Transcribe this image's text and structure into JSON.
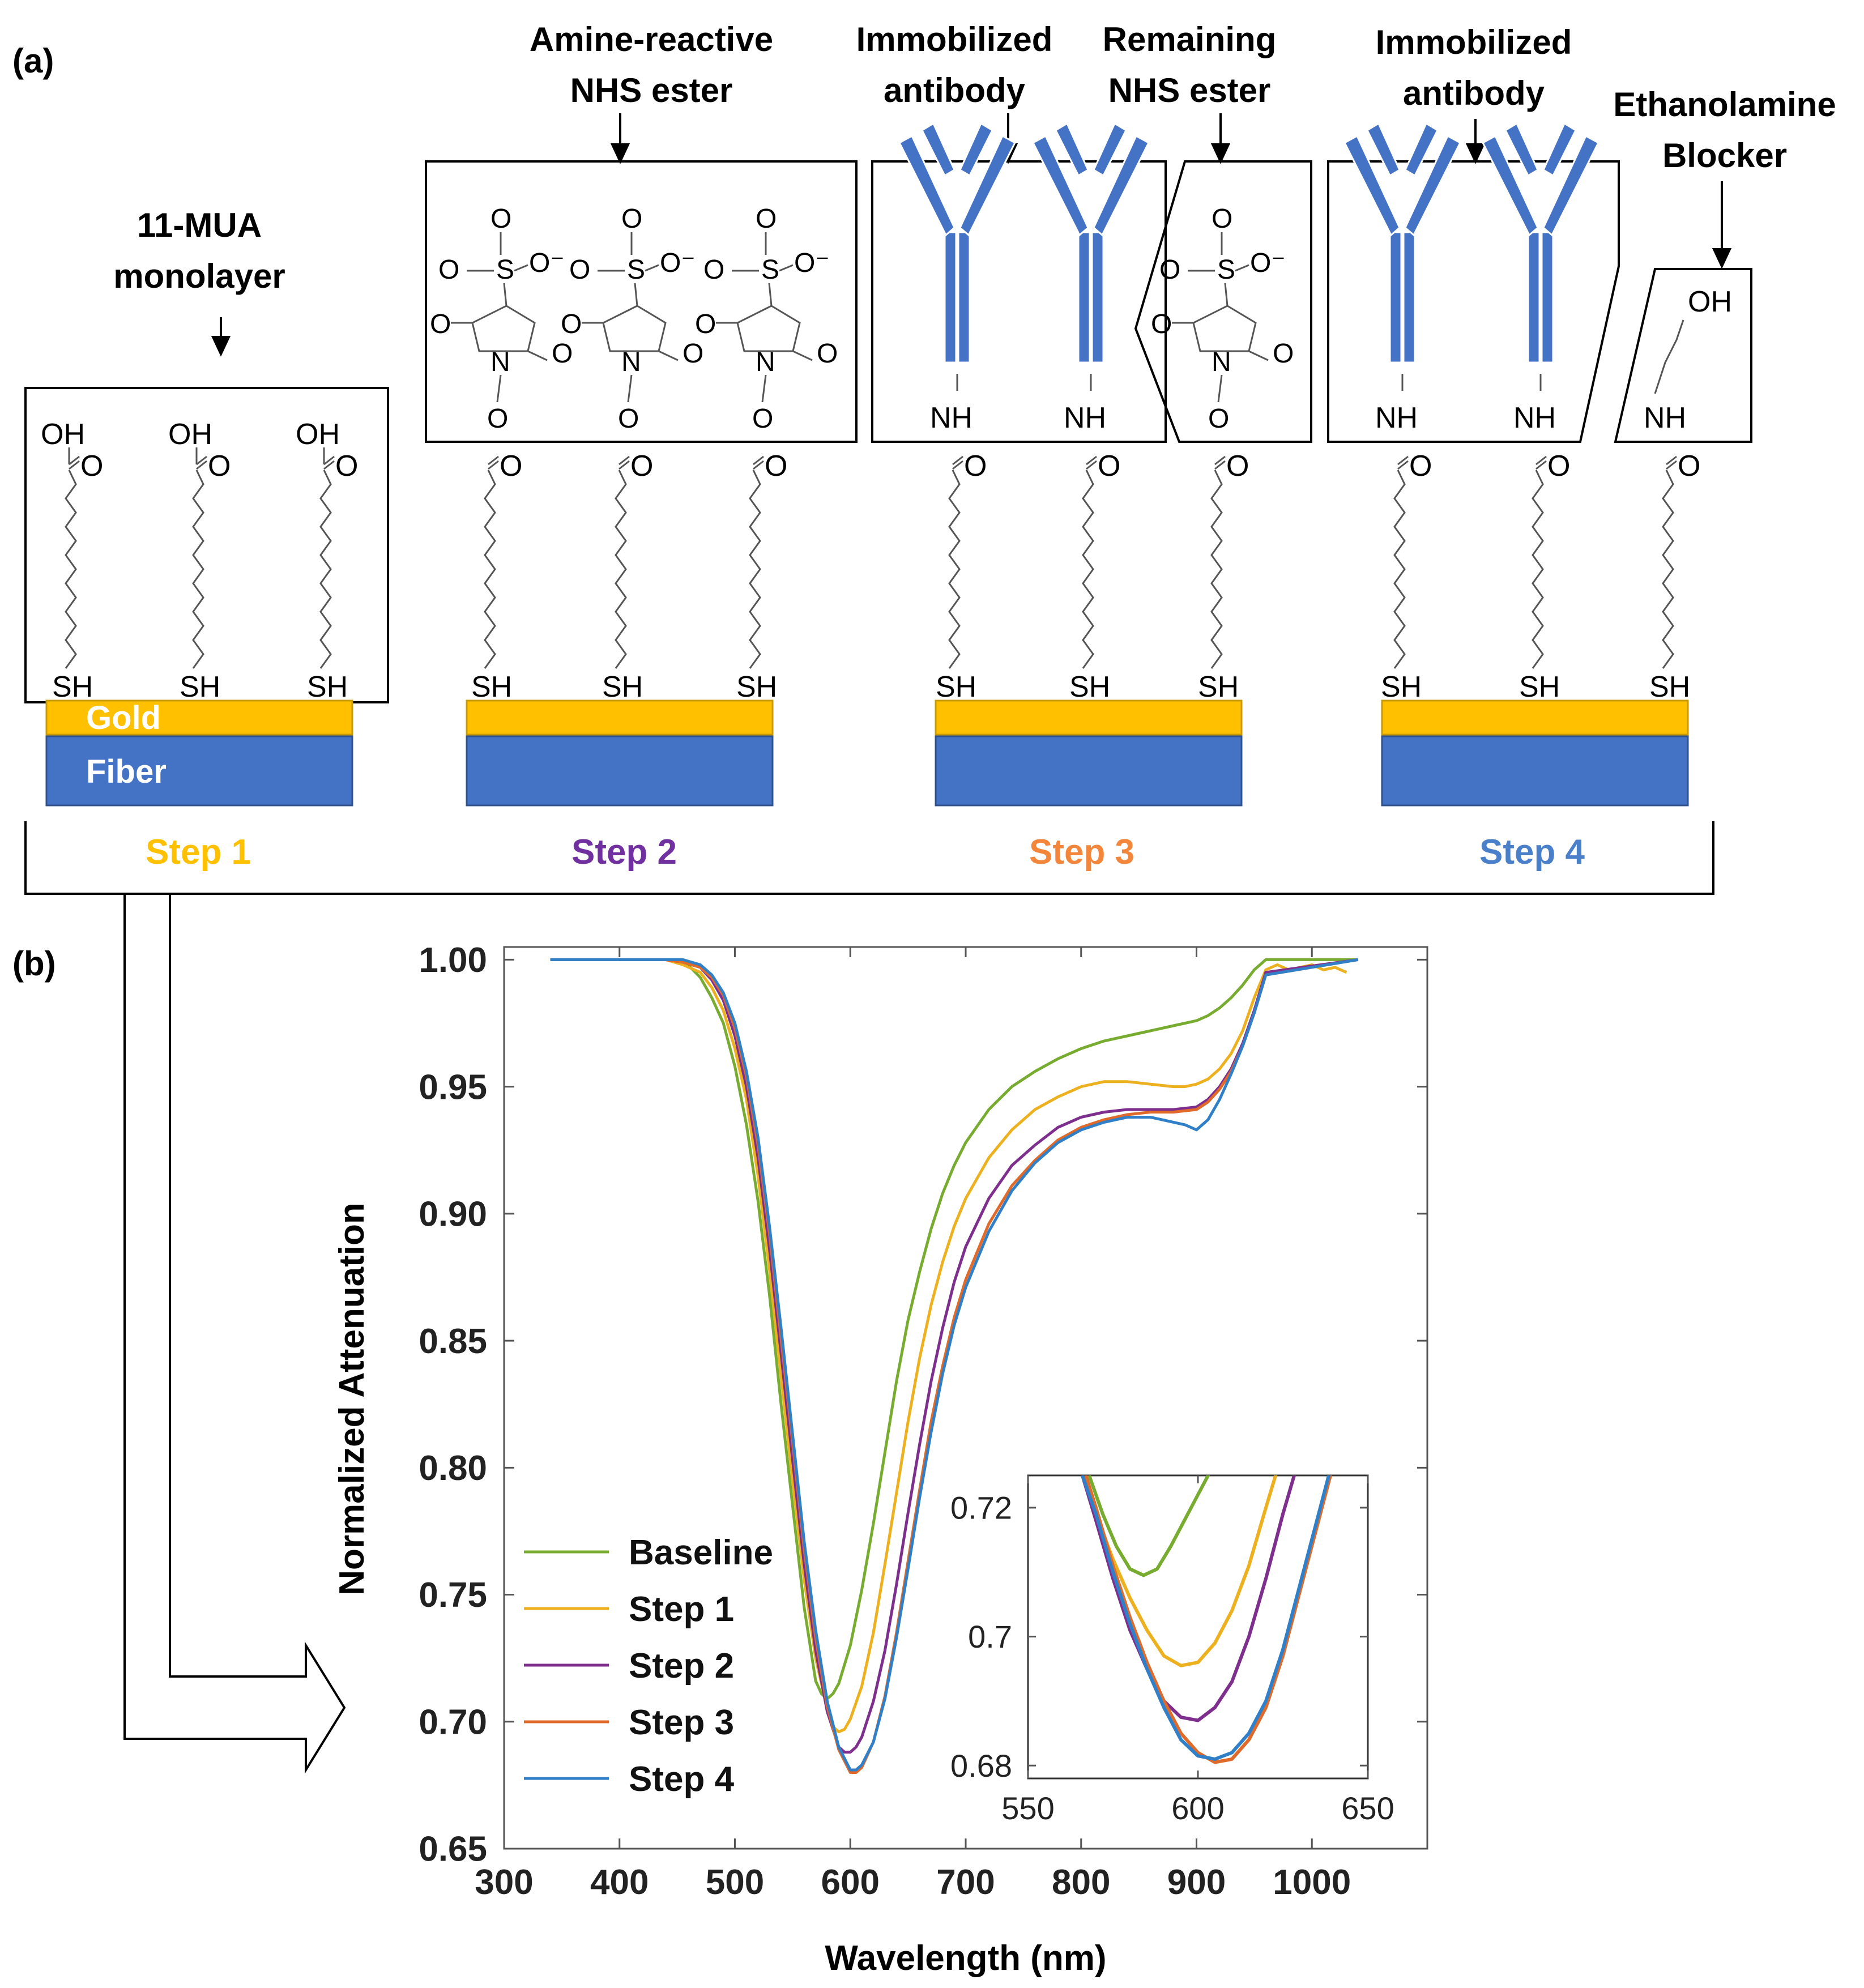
{
  "panels": {
    "a": "(a)",
    "b": "(b)"
  },
  "labels": {
    "mua": [
      "11-MUA",
      "monolayer"
    ],
    "nhs": [
      "Amine-reactive",
      "NHS ester"
    ],
    "immob1": [
      "Immobilized",
      "antibody"
    ],
    "remaining": [
      "Remaining",
      "NHS ester"
    ],
    "immob2": [
      "Immobilized",
      "antibody"
    ],
    "ethanolamine": [
      "Ethanolamine",
      "Blocker"
    ]
  },
  "substrate": {
    "gold": "Gold",
    "fiber": "Fiber"
  },
  "steps": [
    "Step 1",
    "Step 2",
    "Step 3",
    "Step 4"
  ],
  "chem": {
    "oh": "OH",
    "o": "O",
    "sh": "SH",
    "nh": "NH",
    "n": "N",
    "s": "S",
    "o_minus": "O⁻"
  },
  "colors": {
    "gold": "#FFC000",
    "fiber": "#4472C4",
    "antibody": "#4472C4",
    "step1": "#FFC000",
    "step2": "#7030A0",
    "step3": "#F4863B",
    "step4": "#4A7FC9",
    "baseline_line": "#77AC30",
    "step1_line": "#EDB120",
    "step2_line": "#7E2F8E",
    "step3_line": "#E06A2A",
    "step4_line": "#2F80C8"
  },
  "chart_data": [
    {
      "type": "line",
      "title": "",
      "xlabel": "Wavelength (nm)",
      "ylabel": "Normalized Attenuation",
      "xlim": [
        300,
        1100
      ],
      "ylim": [
        0.65,
        1.005
      ],
      "xticks": [
        300,
        400,
        500,
        600,
        700,
        800,
        900,
        1000
      ],
      "yticks": [
        0.65,
        0.7,
        0.75,
        0.8,
        0.85,
        0.9,
        0.95,
        1.0
      ],
      "ytick_labels": [
        "0.65",
        "0.70",
        "0.75",
        "0.80",
        "0.85",
        "0.90",
        "0.95",
        "1.00"
      ],
      "legend_position": "bottom-left",
      "series": [
        {
          "name": "Baseline",
          "color": "#77AC30",
          "x": [
            340,
            440,
            455,
            470,
            480,
            490,
            500,
            510,
            520,
            530,
            540,
            550,
            560,
            570,
            575,
            580,
            585,
            590,
            600,
            610,
            620,
            630,
            640,
            650,
            660,
            670,
            680,
            690,
            700,
            720,
            740,
            760,
            780,
            800,
            820,
            840,
            860,
            880,
            900,
            910,
            920,
            930,
            940,
            950,
            960,
            1040
          ],
          "y": [
            1.0,
            1.0,
            1.0,
            0.993,
            0.985,
            0.975,
            0.958,
            0.935,
            0.905,
            0.868,
            0.825,
            0.785,
            0.745,
            0.716,
            0.711,
            0.709,
            0.711,
            0.715,
            0.73,
            0.752,
            0.778,
            0.806,
            0.834,
            0.858,
            0.877,
            0.894,
            0.908,
            0.919,
            0.928,
            0.941,
            0.95,
            0.956,
            0.961,
            0.965,
            0.968,
            0.97,
            0.972,
            0.974,
            0.976,
            0.978,
            0.981,
            0.985,
            0.99,
            0.996,
            1.0,
            1.0
          ]
        },
        {
          "name": "Step 1",
          "color": "#EDB120",
          "x": [
            340,
            440,
            455,
            470,
            480,
            490,
            500,
            510,
            520,
            530,
            540,
            550,
            560,
            570,
            580,
            585,
            590,
            595,
            600,
            610,
            620,
            630,
            640,
            650,
            660,
            670,
            680,
            690,
            700,
            720,
            740,
            760,
            780,
            800,
            820,
            840,
            860,
            880,
            890,
            900,
            910,
            920,
            930,
            940,
            950,
            960,
            970,
            980,
            1000,
            1010,
            1020,
            1030
          ],
          "y": [
            1.0,
            1.0,
            0.998,
            0.995,
            0.989,
            0.98,
            0.965,
            0.945,
            0.915,
            0.878,
            0.836,
            0.795,
            0.756,
            0.725,
            0.705,
            0.698,
            0.696,
            0.697,
            0.701,
            0.714,
            0.735,
            0.762,
            0.79,
            0.818,
            0.843,
            0.864,
            0.881,
            0.895,
            0.906,
            0.922,
            0.933,
            0.941,
            0.946,
            0.95,
            0.952,
            0.952,
            0.951,
            0.95,
            0.95,
            0.951,
            0.953,
            0.957,
            0.963,
            0.972,
            0.985,
            0.996,
            0.998,
            0.996,
            0.998,
            0.996,
            0.997,
            0.995
          ]
        },
        {
          "name": "Step 2",
          "color": "#7E2F8E",
          "x": [
            340,
            440,
            455,
            470,
            480,
            490,
            500,
            510,
            520,
            530,
            540,
            550,
            560,
            570,
            580,
            590,
            595,
            600,
            605,
            610,
            620,
            630,
            640,
            650,
            660,
            670,
            680,
            690,
            700,
            720,
            740,
            760,
            780,
            800,
            820,
            840,
            860,
            880,
            900,
            910,
            920,
            930,
            940,
            950,
            960,
            1040
          ],
          "y": [
            1.0,
            1.0,
            0.999,
            0.997,
            0.992,
            0.984,
            0.97,
            0.95,
            0.922,
            0.886,
            0.845,
            0.803,
            0.762,
            0.728,
            0.704,
            0.69,
            0.688,
            0.688,
            0.69,
            0.694,
            0.708,
            0.728,
            0.754,
            0.782,
            0.809,
            0.834,
            0.855,
            0.873,
            0.887,
            0.906,
            0.919,
            0.927,
            0.934,
            0.938,
            0.94,
            0.941,
            0.941,
            0.941,
            0.942,
            0.945,
            0.95,
            0.957,
            0.967,
            0.98,
            0.995,
            1.0
          ]
        },
        {
          "name": "Step 3",
          "color": "#E06A2A",
          "x": [
            340,
            440,
            455,
            470,
            480,
            490,
            500,
            510,
            520,
            530,
            540,
            550,
            560,
            570,
            580,
            590,
            600,
            605,
            610,
            620,
            630,
            640,
            650,
            660,
            670,
            680,
            690,
            700,
            720,
            740,
            760,
            780,
            800,
            820,
            840,
            860,
            880,
            900,
            910,
            920,
            930,
            940,
            950,
            960,
            1040
          ],
          "y": [
            1.0,
            1.0,
            0.999,
            0.997,
            0.993,
            0.986,
            0.973,
            0.954,
            0.927,
            0.892,
            0.851,
            0.81,
            0.768,
            0.733,
            0.706,
            0.689,
            0.68,
            0.68,
            0.682,
            0.692,
            0.71,
            0.735,
            0.763,
            0.791,
            0.818,
            0.84,
            0.859,
            0.874,
            0.896,
            0.911,
            0.921,
            0.929,
            0.934,
            0.937,
            0.939,
            0.94,
            0.94,
            0.941,
            0.944,
            0.949,
            0.956,
            0.966,
            0.979,
            0.994,
            1.0
          ]
        },
        {
          "name": "Step 4",
          "color": "#2F80C8",
          "x": [
            340,
            440,
            455,
            470,
            480,
            490,
            500,
            510,
            520,
            530,
            540,
            550,
            560,
            570,
            580,
            590,
            600,
            605,
            610,
            620,
            630,
            640,
            650,
            660,
            670,
            680,
            690,
            700,
            720,
            740,
            760,
            780,
            800,
            820,
            840,
            860,
            870,
            880,
            890,
            900,
            910,
            920,
            930,
            940,
            950,
            960,
            1040
          ],
          "y": [
            1.0,
            1.0,
            1.0,
            0.998,
            0.994,
            0.987,
            0.975,
            0.956,
            0.93,
            0.895,
            0.855,
            0.813,
            0.771,
            0.736,
            0.708,
            0.69,
            0.681,
            0.681,
            0.683,
            0.692,
            0.709,
            0.733,
            0.76,
            0.788,
            0.814,
            0.837,
            0.856,
            0.871,
            0.893,
            0.909,
            0.92,
            0.928,
            0.933,
            0.936,
            0.938,
            0.938,
            0.937,
            0.936,
            0.935,
            0.933,
            0.937,
            0.945,
            0.955,
            0.966,
            0.979,
            0.994,
            1.0
          ]
        }
      ]
    },
    {
      "type": "line",
      "title": "",
      "xlabel": "",
      "ylabel": "",
      "xlim": [
        550,
        650
      ],
      "ylim": [
        0.678,
        0.725
      ],
      "xticks": [
        550,
        600,
        650
      ],
      "yticks": [
        0.68,
        0.7,
        0.72
      ],
      "ytick_labels": [
        "0.68",
        "0.7",
        "0.72"
      ],
      "series": [
        {
          "color": "#77AC30",
          "x": [
            568,
            572,
            576,
            580,
            584,
            588,
            592,
            596,
            600,
            604,
            608
          ],
          "y": [
            0.725,
            0.719,
            0.714,
            0.7105,
            0.7095,
            0.7105,
            0.714,
            0.718,
            0.722,
            0.726,
            0.73
          ]
        },
        {
          "color": "#EDB120",
          "x": [
            566,
            570,
            575,
            580,
            585,
            590,
            595,
            600,
            605,
            610,
            615,
            620,
            624
          ],
          "y": [
            0.725,
            0.719,
            0.712,
            0.706,
            0.701,
            0.697,
            0.6955,
            0.696,
            0.699,
            0.704,
            0.711,
            0.72,
            0.727
          ]
        },
        {
          "color": "#7E2F8E",
          "x": [
            566,
            570,
            575,
            580,
            585,
            590,
            595,
            600,
            605,
            610,
            615,
            620,
            625,
            630
          ],
          "y": [
            0.725,
            0.718,
            0.709,
            0.701,
            0.695,
            0.69,
            0.6875,
            0.687,
            0.689,
            0.693,
            0.7,
            0.709,
            0.719,
            0.728
          ]
        },
        {
          "color": "#E06A2A",
          "x": [
            567,
            570,
            575,
            580,
            585,
            590,
            595,
            600,
            605,
            610,
            615,
            620,
            625,
            630,
            635,
            640
          ],
          "y": [
            0.725,
            0.72,
            0.711,
            0.703,
            0.696,
            0.69,
            0.685,
            0.682,
            0.6805,
            0.681,
            0.684,
            0.689,
            0.697,
            0.707,
            0.717,
            0.727
          ]
        },
        {
          "color": "#2F80C8",
          "x": [
            566,
            570,
            575,
            580,
            585,
            590,
            595,
            600,
            605,
            610,
            615,
            620,
            625,
            630,
            635,
            640
          ],
          "y": [
            0.725,
            0.719,
            0.71,
            0.702,
            0.695,
            0.689,
            0.684,
            0.6815,
            0.681,
            0.682,
            0.685,
            0.69,
            0.698,
            0.708,
            0.718,
            0.728
          ]
        }
      ]
    }
  ]
}
